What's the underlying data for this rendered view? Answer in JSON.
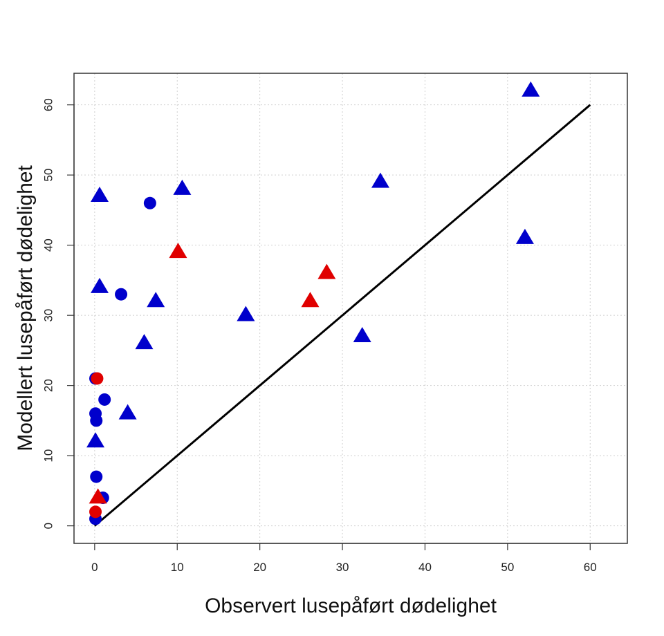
{
  "chart_data": {
    "type": "scatter",
    "title": "",
    "xlabel": "Observert lusepåført dødelighet",
    "ylabel": "Modellert lusepåført dødelighet",
    "xlim": [
      -2.5,
      64.5
    ],
    "ylim": [
      -2.5,
      64.5
    ],
    "x_ticks": [
      0,
      10,
      20,
      30,
      40,
      50,
      60
    ],
    "y_ticks": [
      0,
      10,
      20,
      30,
      40,
      50,
      60
    ],
    "grid": true,
    "identity_line": {
      "from": [
        0,
        0
      ],
      "to": [
        60,
        60
      ],
      "color": "#000000"
    },
    "series": [
      {
        "marker": "circle",
        "color": "#0000cc",
        "points": [
          [
            6.7,
            46
          ],
          [
            3.2,
            33
          ],
          [
            1.2,
            18
          ],
          [
            0.1,
            21
          ],
          [
            0.1,
            16
          ],
          [
            0.2,
            15
          ],
          [
            0.2,
            7
          ],
          [
            1.0,
            4
          ],
          [
            0.1,
            1
          ]
        ]
      },
      {
        "marker": "triangle",
        "color": "#0000cc",
        "points": [
          [
            52.8,
            62
          ],
          [
            34.6,
            49
          ],
          [
            10.6,
            48
          ],
          [
            0.6,
            47
          ],
          [
            52.1,
            41
          ],
          [
            0.6,
            34
          ],
          [
            7.4,
            32
          ],
          [
            18.3,
            30
          ],
          [
            32.4,
            27
          ],
          [
            6.0,
            26
          ],
          [
            4.0,
            16
          ],
          [
            0.1,
            12
          ]
        ]
      },
      {
        "marker": "circle",
        "color": "#e00000",
        "points": [
          [
            0.3,
            21
          ],
          [
            0.1,
            2
          ]
        ]
      },
      {
        "marker": "triangle",
        "color": "#e00000",
        "points": [
          [
            10.1,
            39
          ],
          [
            28.1,
            36
          ],
          [
            26.1,
            32
          ],
          [
            0.4,
            4
          ]
        ]
      }
    ]
  }
}
